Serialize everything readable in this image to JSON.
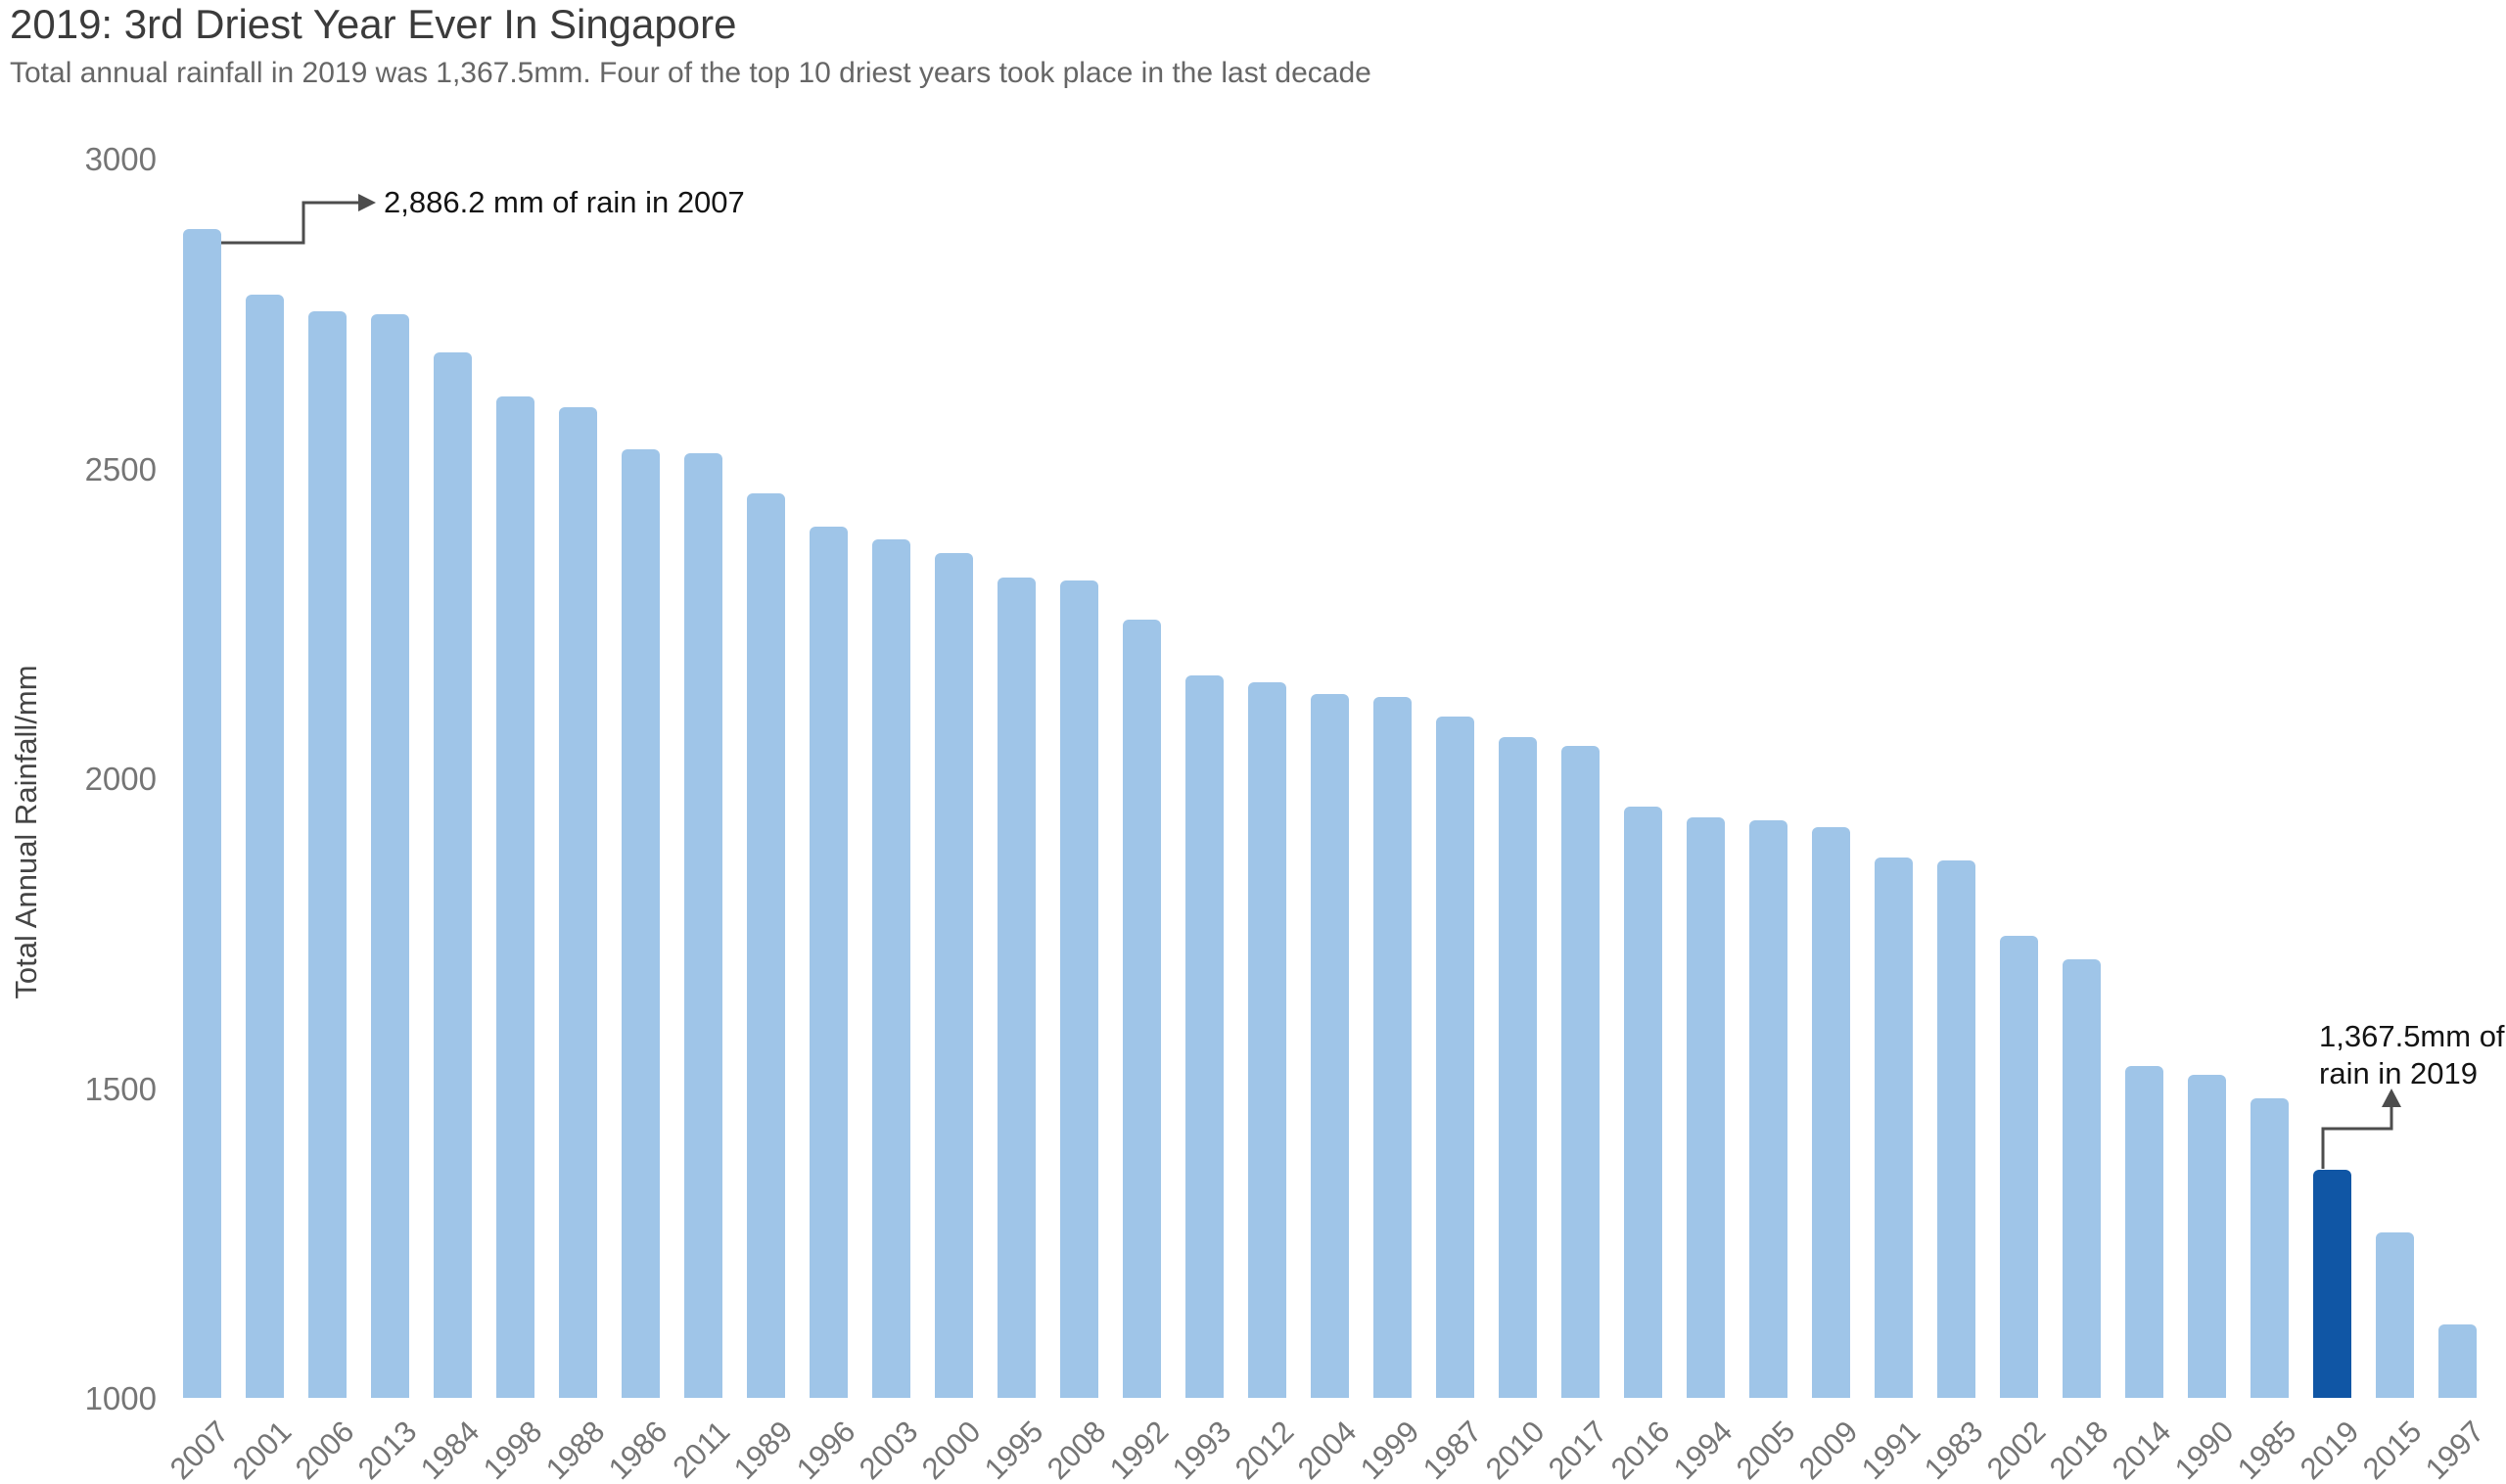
{
  "header": {
    "title": "2019: 3rd Driest Year Ever In Singapore",
    "subtitle": "Total annual rainfall in 2019 was 1,367.5mm. Four of the top 10 driest years took place in the last decade"
  },
  "chart_data": {
    "type": "bar",
    "title": "2019: 3rd Driest Year Ever In Singapore",
    "subtitle": "Total annual rainfall in 2019 was 1,367.5mm. Four of the top 10 driest years took place in the last decade",
    "xlabel": "",
    "ylabel": "Total Annual Rainfall/mm",
    "ylim": [
      1000,
      3000
    ],
    "yticks": [
      1000,
      1500,
      2000,
      2500,
      3000
    ],
    "grid": false,
    "legend": "none",
    "bar_order": "sorted descending by rainfall",
    "categories": [
      "2007",
      "2001",
      "2006",
      "2013",
      "1984",
      "1998",
      "1988",
      "1986",
      "2011",
      "1989",
      "1996",
      "2003",
      "2000",
      "1995",
      "2008",
      "1992",
      "1993",
      "2012",
      "2004",
      "1999",
      "1987",
      "2010",
      "2017",
      "2016",
      "1994",
      "2005",
      "2009",
      "1991",
      "1983",
      "2002",
      "2018",
      "2014",
      "1990",
      "1985",
      "2019",
      "2015",
      "1997"
    ],
    "values": [
      2886.2,
      2780.6,
      2753.8,
      2748.1,
      2686.7,
      2615.5,
      2598.8,
      2531.2,
      2525.2,
      2459.3,
      2405.8,
      2385.4,
      2364.0,
      2324.3,
      2319.7,
      2256.7,
      2165.5,
      2155.5,
      2136.3,
      2131.1,
      2098.9,
      2066.3,
      2051.9,
      1954.7,
      1937.4,
      1931.6,
      1920.9,
      1871.4,
      1866.6,
      1745.8,
      1707.3,
      1535.8,
      1521.1,
      1483.9,
      1367.5,
      1267.1,
      1118.9
    ],
    "highlight_category": "2019",
    "colors": {
      "bar": "#9fc5e8",
      "highlight_bar": "#1056a5",
      "axis_text": "#757575",
      "annotation_line": "#4d4d4d",
      "annotation_text": "#141414"
    },
    "annotations": [
      {
        "target": "2007",
        "text": "2,886.2 mm of rain in 2007"
      },
      {
        "target": "2019",
        "line1": "1,367.5mm of",
        "line2": "rain in 2019"
      }
    ]
  }
}
